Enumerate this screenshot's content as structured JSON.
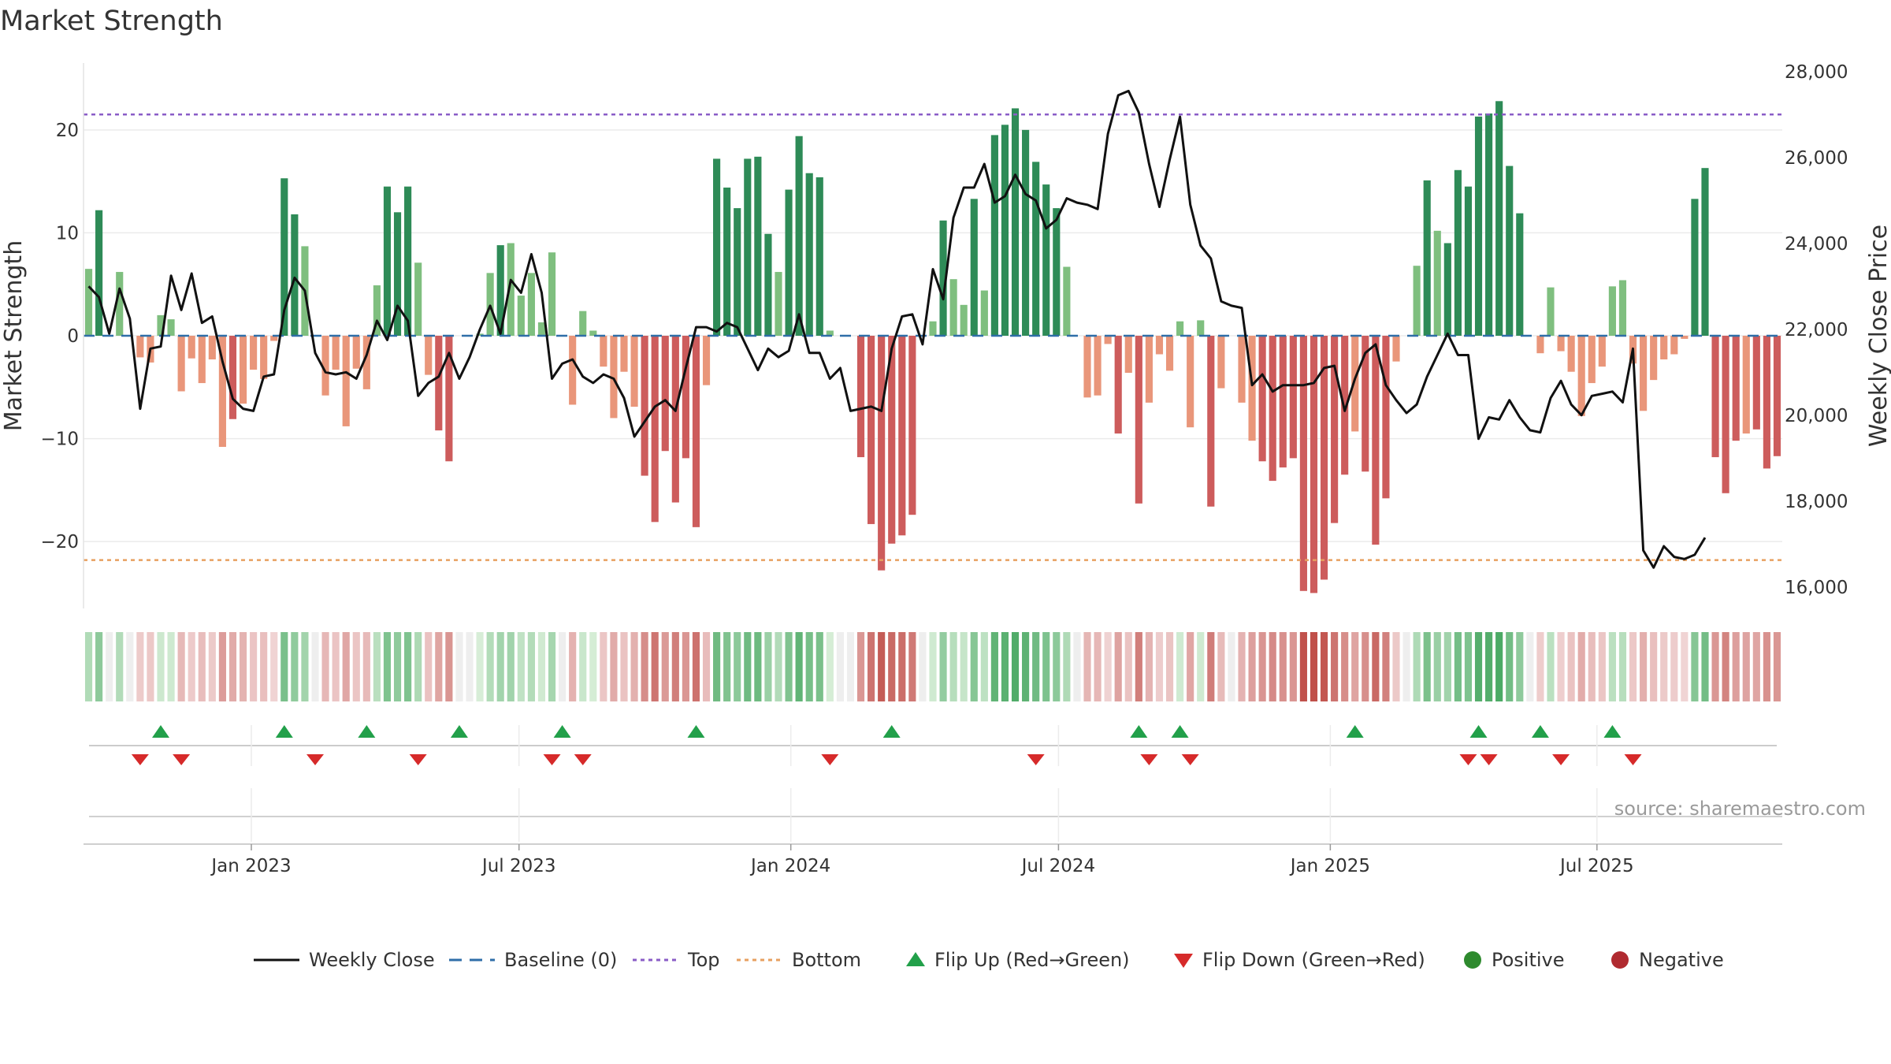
{
  "chart_data": {
    "type": "bar",
    "title": "Market Strength",
    "ylabel_left": "Market Strength",
    "ylabel_right": "Weekly Close Price",
    "left_ticks": [
      20,
      10,
      0,
      -10,
      -20
    ],
    "left_tick_labels": [
      "20",
      "10",
      "0",
      "−10",
      "−20"
    ],
    "right_ticks": [
      28000,
      26000,
      24000,
      22000,
      20000,
      18000,
      16000
    ],
    "right_tick_labels": [
      "28,000",
      "26,000",
      "24,000",
      "22,000",
      "20,000",
      "18,000",
      "16,000"
    ],
    "ylim_left": [
      -26.5,
      27
    ],
    "ylim_right": [
      15500,
      28200
    ],
    "top_level": 21.5,
    "bottom_level": -21.8,
    "x_ticks": [
      {
        "label": "Jan 2023",
        "week": 16.3
      },
      {
        "label": "Jul 2023",
        "week": 42.3
      },
      {
        "label": "Jan 2024",
        "week": 68.7
      },
      {
        "label": "Jul 2024",
        "week": 94.7
      },
      {
        "label": "Jan 2025",
        "week": 121.1
      },
      {
        "label": "Jul 2025",
        "week": 147
      }
    ],
    "strength": [
      6.5,
      12.2,
      0,
      6.2,
      0,
      -2.1,
      -2.6,
      2,
      1.6,
      -5.4,
      -2.2,
      -4.6,
      -2.3,
      -10.8,
      -8.1,
      -6.6,
      -3.3,
      -4.2,
      -0.5,
      15.3,
      11.8,
      8.7,
      0,
      -5.8,
      -3.3,
      -8.8,
      -3.2,
      -5.2,
      4.9,
      14.5,
      12,
      14.5,
      7.1,
      -3.8,
      -9.2,
      -12.2,
      0,
      0,
      0.2,
      6.1,
      8.8,
      9,
      3.9,
      6.1,
      1.3,
      8.1,
      0,
      -6.7,
      2.4,
      0.5,
      -3,
      -8,
      -3.5,
      -6.9,
      -13.6,
      -18.1,
      -11.2,
      -16.2,
      -11.9,
      -18.6,
      -4.8,
      17.2,
      14.4,
      12.4,
      17.2,
      17.4,
      9.9,
      6.2,
      14.2,
      19.4,
      15.8,
      15.4,
      0.5,
      0,
      0,
      -11.8,
      -18.3,
      -22.8,
      -20.2,
      -19.4,
      -17.4,
      0,
      1.4,
      11.2,
      5.5,
      3,
      13.3,
      4.4,
      19.5,
      20.5,
      22.1,
      20,
      16.9,
      14.7,
      12.4,
      6.7,
      0,
      -6,
      -5.8,
      -0.8,
      -9.5,
      -3.6,
      -16.3,
      -6.5,
      -1.8,
      -3.4,
      1.4,
      -8.9,
      1.5,
      -16.6,
      -5.1,
      0,
      -6.5,
      -10.2,
      -12.2,
      -14.1,
      -12.8,
      -11.9,
      -24.8,
      -25,
      -23.7,
      -18.2,
      -13.5,
      -9.3,
      -13.2,
      -20.3,
      -15.8,
      -2.5,
      0,
      6.8,
      15.1,
      10.2,
      9,
      16.1,
      14.5,
      21.3,
      21.6,
      22.8,
      16.5,
      11.9,
      0,
      -1.7,
      4.7,
      -1.5,
      -3.5,
      -7.8,
      -4.6,
      -3,
      4.8,
      5.4,
      -2.7,
      -7.3,
      -4.3,
      -2.3,
      -1.8,
      -0.3,
      13.3,
      16.3,
      -11.8,
      -15.3,
      -10.2,
      -9.5,
      -9.1,
      -12.9,
      -11.7
    ],
    "weekly_close": [
      23000,
      22750,
      21900,
      22950,
      22250,
      20150,
      21550,
      21600,
      23250,
      22450,
      23300,
      22150,
      22300,
      21250,
      20380,
      20150,
      20100,
      20900,
      20950,
      22450,
      23200,
      22900,
      21450,
      21000,
      20950,
      21000,
      20850,
      21400,
      22200,
      21750,
      22550,
      22200,
      20450,
      20750,
      20900,
      21450,
      20850,
      21350,
      22000,
      22550,
      21900,
      23150,
      22850,
      23750,
      22850,
      20850,
      21200,
      21300,
      20900,
      20750,
      20950,
      20850,
      20400,
      19500,
      19850,
      20200,
      20350,
      20100,
      21100,
      22050,
      22050,
      21950,
      22150,
      22050,
      21550,
      21050,
      21550,
      21350,
      21500,
      22350,
      21450,
      21450,
      20850,
      21100,
      20100,
      20150,
      20200,
      20100,
      21550,
      22300,
      22350,
      21650,
      23400,
      22700,
      24600,
      25300,
      25300,
      25850,
      24950,
      25100,
      25600,
      25150,
      25000,
      24350,
      24550,
      25050,
      24950,
      24900,
      24800,
      26550,
      27450,
      27550,
      27050,
      25850,
      24850,
      25950,
      26950,
      24900,
      23950,
      23650,
      22650,
      22550,
      22500,
      20700,
      20950,
      20550,
      20700,
      20700,
      20700,
      20750,
      21100,
      21150,
      20100,
      20850,
      21450,
      21650,
      20700,
      20350,
      20050,
      20250,
      20900,
      21400,
      21900,
      21400,
      21400,
      19450,
      19950,
      19900,
      20350,
      19950,
      19650,
      19600,
      20400,
      20800,
      20250,
      20000,
      20450,
      20500,
      20550,
      20300,
      21550,
      16850,
      16450,
      16950,
      16700,
      16650,
      16750,
      17150
    ],
    "flip_up_weeks": [
      7,
      19,
      27,
      36,
      46,
      59,
      78,
      102,
      106,
      123,
      135,
      141,
      148
    ],
    "flip_down_weeks": [
      5,
      9,
      22,
      32,
      45,
      48,
      72,
      92,
      103,
      107,
      134,
      136,
      143,
      150
    ],
    "source": "source: sharemaestro.com",
    "legend": [
      {
        "label": "Weekly Close",
        "kind": "line",
        "color": "#111111"
      },
      {
        "label": "Baseline (0)",
        "kind": "dash",
        "color": "#2f6ea8"
      },
      {
        "label": "Top",
        "kind": "dot",
        "color": "#8a5cc7"
      },
      {
        "label": "Bottom",
        "kind": "dot",
        "color": "#e7a060"
      },
      {
        "label": "Flip Up (Red→Green)",
        "kind": "tri-up",
        "color": "#22a04a"
      },
      {
        "label": "Flip Down (Green→Red)",
        "kind": "tri-down",
        "color": "#d62a2a"
      },
      {
        "label": "Positive",
        "kind": "circle",
        "color": "#2e8a2e"
      },
      {
        "label": "Negative",
        "kind": "circle",
        "color": "#b02a30"
      }
    ],
    "colors": {
      "pos_strong": "#2e8b57",
      "pos_light": "#7fbf7f",
      "neg_strong": "#cd5c5c",
      "neg_light": "#e9967a",
      "price_line": "#111111",
      "baseline": "#2f6ea8",
      "top": "#8a5cc7",
      "bottom": "#e7a060",
      "flip_up": "#22a04a",
      "flip_down": "#d62a2a"
    }
  }
}
